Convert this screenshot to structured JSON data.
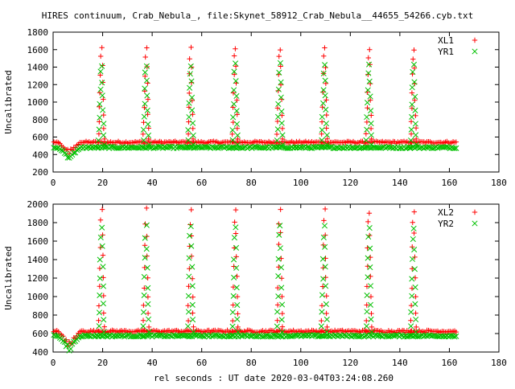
{
  "title": "HIRES continuum, Crab_Nebula_, file:Skynet_58912_Crab_Nebula__44655_54266.cyb.txt",
  "xlabel": "rel seconds : UT date 2020-03-04T03:24:08.260",
  "colors": {
    "red": "#ff0000",
    "green": "#00c000",
    "frame": "#000000"
  },
  "chart_data": [
    {
      "type": "scatter",
      "ylabel": "Uncalibrated",
      "xlim": [
        0,
        180
      ],
      "ylim": [
        200,
        1800
      ],
      "xticks": [
        "0",
        "20",
        "40",
        "60",
        "80",
        "100",
        "120",
        "140",
        "160",
        "180"
      ],
      "yticks": [
        "200",
        "400",
        "600",
        "800",
        "1000",
        "1200",
        "1400",
        "1600",
        "1800"
      ],
      "legend_position": "top-right",
      "series": [
        {
          "name": "XL1",
          "marker": "plus",
          "color": "#ff0000",
          "baseline": 540,
          "noise": 12,
          "peak": 1650,
          "peaks_x": [
            19.5,
            37.5,
            55.5,
            73.5,
            91.5,
            109.5,
            127.5,
            145.5
          ],
          "dip": {
            "x": [
              2,
              11
            ],
            "min": 400
          }
        },
        {
          "name": "YR1",
          "marker": "cross",
          "color": "#00c000",
          "baseline": 480,
          "noise": 10,
          "peak": 1450,
          "peaks_x": [
            19.5,
            37.5,
            55.5,
            73.5,
            91.5,
            109.5,
            127.5,
            145.5
          ],
          "dip": {
            "x": [
              2,
              11
            ],
            "min": 340
          }
        }
      ],
      "x_range_data": [
        0,
        163
      ]
    },
    {
      "type": "scatter",
      "ylabel": "Uncalibrated",
      "xlim": [
        0,
        180
      ],
      "ylim": [
        400,
        2000
      ],
      "xticks": [
        "0",
        "20",
        "40",
        "60",
        "80",
        "100",
        "120",
        "140",
        "160",
        "180"
      ],
      "yticks": [
        "400",
        "600",
        "800",
        "1000",
        "1200",
        "1400",
        "1600",
        "1800",
        "2000"
      ],
      "legend_position": "top-right",
      "series": [
        {
          "name": "XL2",
          "marker": "plus",
          "color": "#ff0000",
          "baseline": 625,
          "noise": 12,
          "peak": 1960,
          "peaks_x": [
            19.5,
            37.5,
            55.5,
            73.5,
            91.5,
            109.5,
            127.5,
            145.5
          ],
          "dip": {
            "x": [
              2,
              11
            ],
            "min": 440
          }
        },
        {
          "name": "YR2",
          "marker": "cross",
          "color": "#00c000",
          "baseline": 575,
          "noise": 10,
          "peak": 1790,
          "peaks_x": [
            19.5,
            37.5,
            55.5,
            73.5,
            91.5,
            109.5,
            127.5,
            145.5
          ],
          "dip": {
            "x": [
              2,
              11
            ],
            "min": 410
          }
        }
      ],
      "x_range_data": [
        0,
        163
      ]
    }
  ]
}
